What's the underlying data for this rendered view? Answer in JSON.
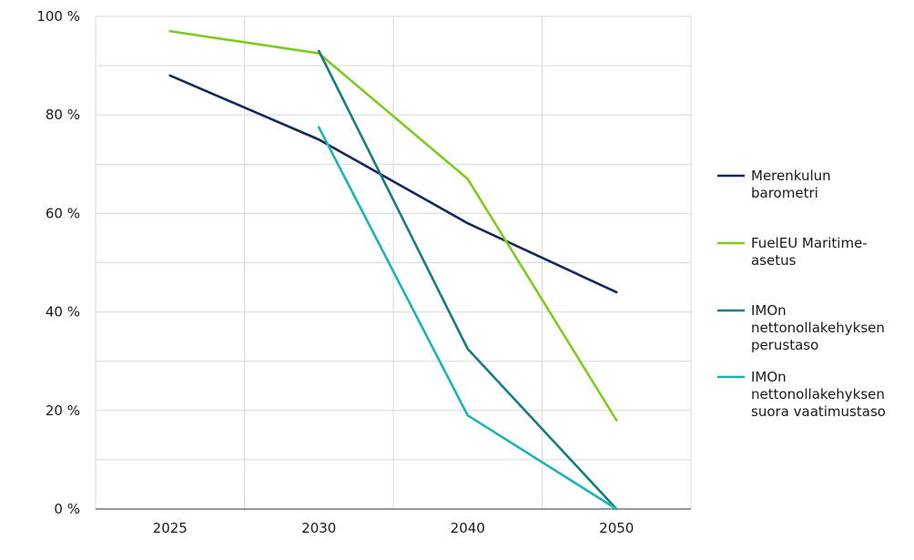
{
  "chart_data": {
    "type": "line",
    "categories": [
      "2025",
      "2030",
      "2040",
      "2050"
    ],
    "y_tick_labels": [
      "0 %",
      "20 %",
      "40 %",
      "60 %",
      "80 %",
      "100 %"
    ],
    "y_ticks": [
      0,
      20,
      40,
      60,
      80,
      100
    ],
    "ylim": [
      0,
      100
    ],
    "grid": true,
    "legend_position": "right",
    "series": [
      {
        "name": "Merenkulun barometri",
        "legend_lines": [
          "Merenkulun",
          "barometri"
        ],
        "color": "#14285f",
        "values": [
          88,
          75,
          58,
          44
        ]
      },
      {
        "name": "FuelEU Maritime-asetus",
        "legend_lines": [
          "FuelEU Maritime-",
          "asetus"
        ],
        "color": "#7ccc1c",
        "values": [
          97,
          92.5,
          67,
          18
        ]
      },
      {
        "name": "IMOn nettonollakehyksen perustaso",
        "legend_lines": [
          "IMOn",
          "nettonollakehyksen",
          "perustaso"
        ],
        "color": "#167d7f",
        "values": [
          null,
          93,
          32.5,
          0
        ]
      },
      {
        "name": "IMOn nettonollakehyksen suora vaatimustaso",
        "legend_lines": [
          "IMOn",
          "nettonollakehyksen",
          "suora vaatimustaso"
        ],
        "color": "#19b4b8",
        "values": [
          null,
          77.5,
          19,
          0
        ]
      }
    ]
  }
}
